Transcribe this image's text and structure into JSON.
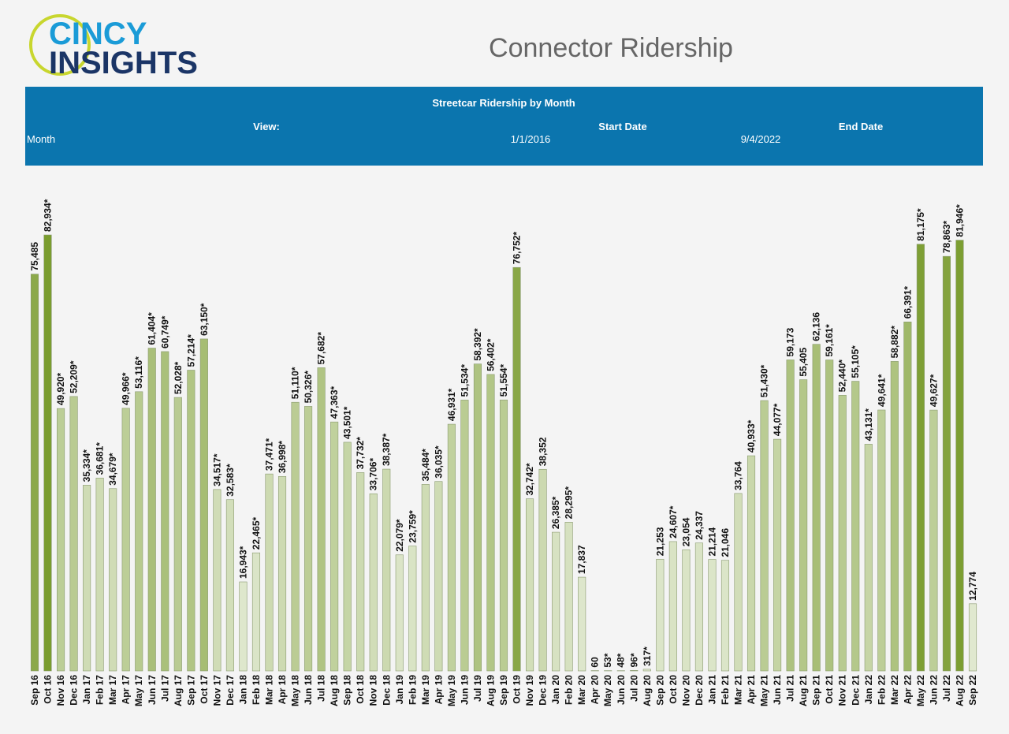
{
  "header": {
    "logo_line1": "CINCY",
    "logo_line2": "INSIGHTS",
    "title": "Connector Ridership"
  },
  "filters": {
    "view_label": "View:",
    "view_value": "Month",
    "start_label": "Start Date",
    "start_value": "1/1/2016",
    "end_label": "End Date",
    "end_value": "9/4/2022"
  },
  "chart_data": {
    "type": "bar",
    "title": "Streetcar Ridership by Month",
    "categories": [
      "Sep 16",
      "Oct 16",
      "Nov 16",
      "Dec 16",
      "Jan 17",
      "Feb 17",
      "Mar 17",
      "Apr 17",
      "May 17",
      "Jun 17",
      "Jul 17",
      "Aug 17",
      "Sep 17",
      "Oct 17",
      "Nov 17",
      "Dec 17",
      "Jan 18",
      "Feb 18",
      "Mar 18",
      "Apr 18",
      "May 18",
      "Jun 18",
      "Jul 18",
      "Aug 18",
      "Sep 18",
      "Oct 18",
      "Nov 18",
      "Dec 18",
      "Jan 19",
      "Feb 19",
      "Mar 19",
      "Apr 19",
      "May 19",
      "Jun 19",
      "Jul 19",
      "Aug 19",
      "Sep 19",
      "Oct 19",
      "Nov 19",
      "Dec 19",
      "Jan 20",
      "Feb 20",
      "Mar 20",
      "Apr 20",
      "May 20",
      "Jun 20",
      "Jul 20",
      "Aug 20",
      "Sep 20",
      "Oct 20",
      "Nov 20",
      "Dec 20",
      "Jan 21",
      "Feb 21",
      "Mar 21",
      "Apr 21",
      "May 21",
      "Jun 21",
      "Jul 21",
      "Aug 21",
      "Sep 21",
      "Oct 21",
      "Nov 21",
      "Dec 21",
      "Jan 22",
      "Feb 22",
      "Mar 22",
      "Apr 22",
      "May 22",
      "Jun 22",
      "Jul 22",
      "Aug 22",
      "Sep 22"
    ],
    "values": [
      75485,
      82934,
      49920,
      52209,
      35334,
      36681,
      34679,
      49966,
      53116,
      61404,
      60749,
      52028,
      57214,
      63150,
      34517,
      32583,
      16943,
      22465,
      37471,
      36998,
      51110,
      50326,
      57682,
      47363,
      43501,
      37732,
      33706,
      38387,
      22079,
      23759,
      35484,
      36035,
      46931,
      51534,
      58392,
      56402,
      51554,
      76752,
      32742,
      38352,
      26385,
      28295,
      17837,
      60,
      53,
      48,
      96,
      317,
      21253,
      24607,
      23054,
      24337,
      21214,
      21046,
      33764,
      40933,
      51430,
      44077,
      59173,
      55405,
      62136,
      59161,
      52440,
      55105,
      43131,
      49641,
      58882,
      66391,
      81175,
      49627,
      78863,
      81946,
      12774
    ],
    "value_labels": [
      "75,485",
      "82,934*",
      "49,920*",
      "52,209*",
      "35,334*",
      "36,681*",
      "34,679*",
      "49,966*",
      "53,116*",
      "61,404*",
      "60,749*",
      "52,028*",
      "57,214*",
      "63,150*",
      "34,517*",
      "32,583*",
      "16,943*",
      "22,465*",
      "37,471*",
      "36,998*",
      "51,110*",
      "50,326*",
      "57,682*",
      "47,363*",
      "43,501*",
      "37,732*",
      "33,706*",
      "38,387*",
      "22,079*",
      "23,759*",
      "35,484*",
      "36,035*",
      "46,931*",
      "51,534*",
      "58,392*",
      "56,402*",
      "51,554*",
      "76,752*",
      "32,742*",
      "38,352",
      "26,385*",
      "28,295*",
      "17,837",
      "60",
      "53*",
      "48*",
      "96*",
      "317*",
      "21,253",
      "24,607*",
      "23,054",
      "24,337",
      "21,214",
      "21,046",
      "33,764",
      "40,933*",
      "51,430*",
      "44,077*",
      "59,173",
      "55,405",
      "62,136",
      "59,161*",
      "52,440*",
      "55,105*",
      "43,131*",
      "49,641*",
      "58,882*",
      "66,391*",
      "81,175*",
      "49,627*",
      "78,863*",
      "81,946*",
      "12,774"
    ],
    "color_low": "#e2ead3",
    "color_high": "#7a9c2e"
  }
}
